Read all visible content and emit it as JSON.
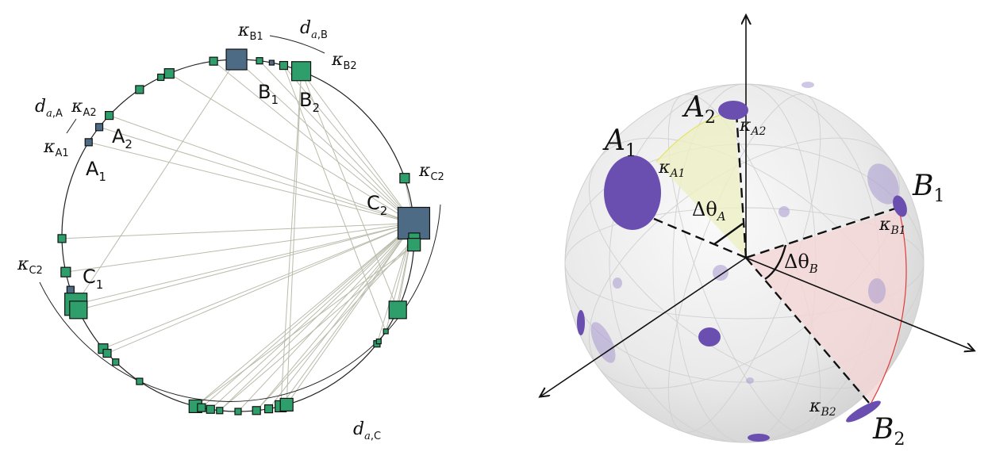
{
  "left_panel": {
    "nodes": {
      "A1": {
        "main": "A",
        "sub": "1"
      },
      "A2": {
        "main": "A",
        "sub": "2"
      },
      "B1": {
        "main": "B",
        "sub": "1"
      },
      "B2": {
        "main": "B",
        "sub": "2"
      },
      "C1": {
        "main": "C",
        "sub": "1"
      },
      "C2": {
        "main": "C",
        "sub": "2"
      }
    },
    "kappa_labels": {
      "kB1": {
        "main": "κ",
        "sub": "B1"
      },
      "kB2": {
        "main": "κ",
        "sub": "B2"
      },
      "kA1": {
        "main": "κ",
        "sub": "A1"
      },
      "kA2": {
        "main": "κ",
        "sub": "A2"
      },
      "kC2_top": {
        "main": "κ",
        "sub": "C2"
      },
      "kC2_left": {
        "main": "κ",
        "sub": "C2"
      }
    },
    "distance_labels": {
      "dB": {
        "main": "d",
        "sub_italic": "a",
        "sub_rest": ",B"
      },
      "dA": {
        "main": "d",
        "sub_italic": "a",
        "sub_rest": ",A"
      },
      "dC": {
        "main": "d",
        "sub_italic": "a",
        "sub_rest": ",C"
      }
    },
    "colors": {
      "node_fill": "#2e9e6a",
      "highlight_fill": "#4e6b86",
      "edge": "#b9bcab",
      "circle": "#222222"
    }
  },
  "right_panel": {
    "points": {
      "A1": {
        "main": "A",
        "sub": "1"
      },
      "A2": {
        "main": "A",
        "sub": "2"
      },
      "B1": {
        "main": "B",
        "sub": "1"
      },
      "B2": {
        "main": "B",
        "sub": "2"
      }
    },
    "kappa_labels": {
      "kA1": {
        "main": "κ",
        "sub": "A1"
      },
      "kA2": {
        "main": "κ",
        "sub": "A2"
      },
      "kB1": {
        "main": "κ",
        "sub": "B1"
      },
      "kB2": {
        "main": "κ",
        "sub": "B2"
      }
    },
    "angle_labels": {
      "thetaA": {
        "main": "Δθ",
        "sub": "A"
      },
      "thetaB": {
        "main": "Δθ",
        "sub": "B"
      }
    },
    "colors": {
      "disk": "#6a4fb0",
      "disk_faint": "#a89ad0",
      "sphere": "#e6e6e6",
      "sector_A": "#eef0c4",
      "sector_B": "#f3d6d4",
      "arc_B": "#e23b3b"
    }
  }
}
